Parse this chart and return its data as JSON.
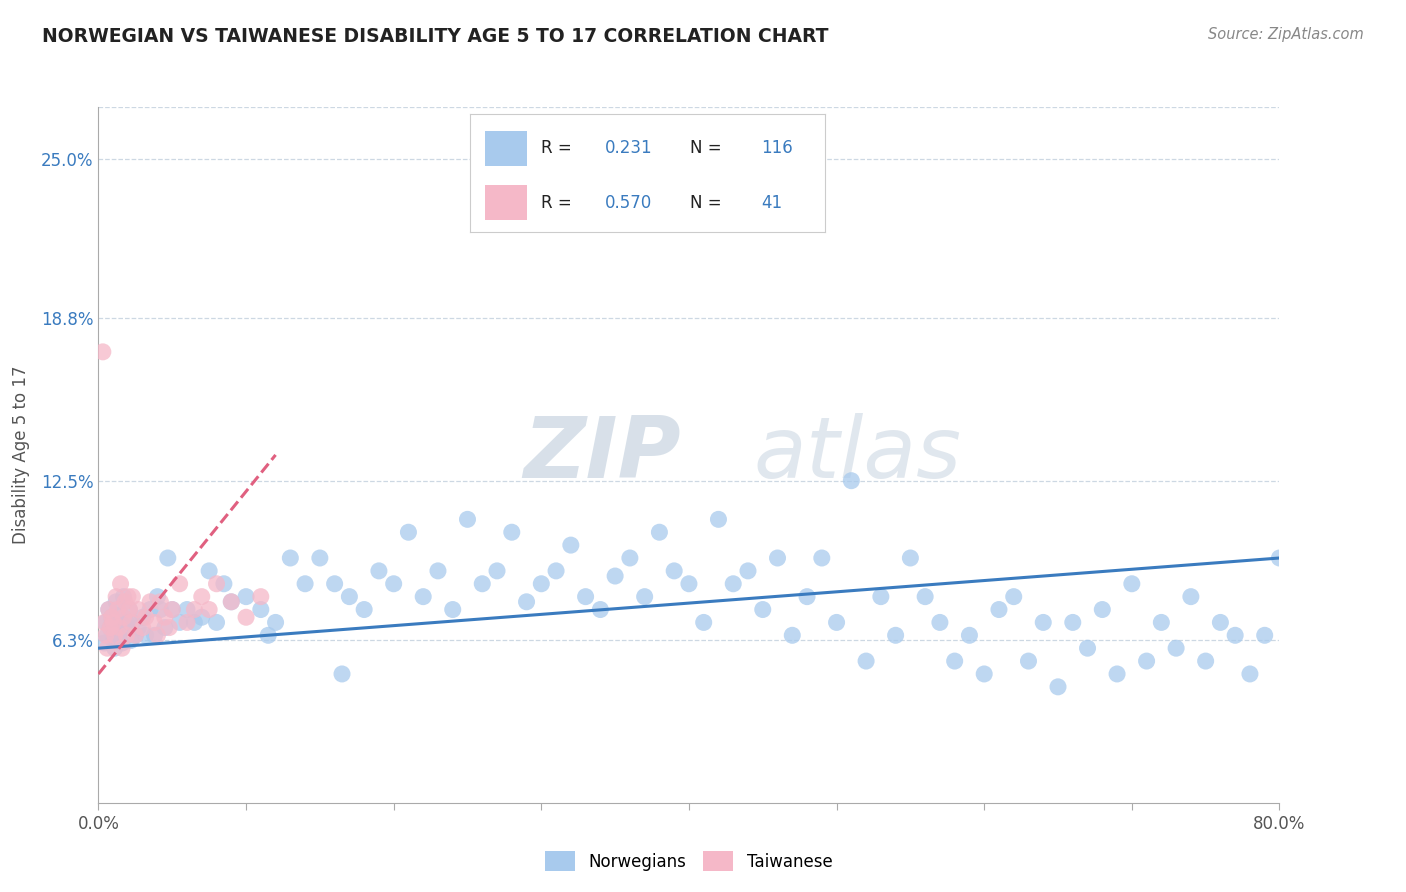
{
  "title": "NORWEGIAN VS TAIWANESE DISABILITY AGE 5 TO 17 CORRELATION CHART",
  "source": "Source: ZipAtlas.com",
  "ylabel": "Disability Age 5 to 17",
  "xlim": [
    0.0,
    80.0
  ],
  "ylim": [
    0.0,
    27.0
  ],
  "ytick_positions": [
    6.3,
    12.5,
    18.8,
    25.0
  ],
  "ytick_labels": [
    "6.3%",
    "12.5%",
    "18.8%",
    "25.0%"
  ],
  "xtick_positions": [
    0.0,
    10.0,
    20.0,
    30.0,
    40.0,
    50.0,
    60.0,
    70.0,
    80.0
  ],
  "xtick_labels": [
    "0.0%",
    "",
    "",
    "",
    "",
    "",
    "",
    "",
    "80.0%"
  ],
  "norwegian_R": 0.231,
  "norwegian_N": 116,
  "taiwanese_R": 0.57,
  "taiwanese_N": 41,
  "blue_color": "#a8caed",
  "pink_color": "#f5b8c8",
  "blue_line_color": "#3a7bbf",
  "pink_line_color": "#e06080",
  "watermark": "ZIPatlas",
  "watermark_blue": "#c5d8ed",
  "watermark_gray": "#a0a8b0",
  "background_color": "#ffffff",
  "grid_color": "#c8d4e0",
  "title_color": "#222222",
  "legend_r_color": "#222222",
  "legend_n_color": "#3a7bbf",
  "nor_x": [
    0.4,
    0.5,
    0.6,
    0.7,
    0.8,
    0.9,
    1.0,
    1.1,
    1.2,
    1.3,
    1.4,
    1.5,
    1.6,
    1.7,
    1.8,
    1.9,
    2.0,
    2.1,
    2.2,
    2.3,
    2.5,
    2.7,
    3.0,
    3.2,
    3.5,
    4.0,
    4.5,
    5.0,
    5.5,
    6.0,
    6.5,
    7.0,
    7.5,
    8.0,
    9.0,
    10.0,
    11.0,
    12.0,
    13.0,
    14.0,
    15.0,
    16.0,
    17.0,
    18.0,
    19.0,
    20.0,
    21.0,
    22.0,
    23.0,
    24.0,
    25.0,
    26.0,
    27.0,
    28.0,
    29.0,
    30.0,
    31.0,
    32.0,
    33.0,
    34.0,
    35.0,
    36.0,
    37.0,
    38.0,
    39.0,
    40.0,
    41.0,
    42.0,
    43.0,
    44.0,
    45.0,
    46.0,
    47.0,
    48.0,
    49.0,
    50.0,
    51.0,
    52.0,
    53.0,
    54.0,
    55.0,
    56.0,
    57.0,
    58.0,
    59.0,
    60.0,
    61.0,
    62.0,
    63.0,
    64.0,
    65.0,
    66.0,
    67.0,
    68.0,
    69.0,
    70.0,
    71.0,
    72.0,
    73.0,
    74.0,
    75.0,
    76.0,
    77.0,
    78.0,
    79.0,
    80.0,
    8.5,
    3.8,
    4.2,
    4.7,
    16.5,
    11.5
  ],
  "nor_y": [
    6.2,
    7.0,
    6.5,
    7.5,
    6.8,
    7.2,
    6.3,
    6.0,
    7.8,
    6.5,
    7.0,
    7.3,
    6.2,
    8.0,
    6.5,
    7.0,
    6.8,
    7.5,
    6.3,
    7.0,
    6.5,
    6.8,
    7.2,
    6.5,
    7.5,
    8.0,
    6.8,
    7.5,
    7.0,
    7.5,
    7.0,
    7.2,
    9.0,
    7.0,
    7.8,
    8.0,
    7.5,
    7.0,
    9.5,
    8.5,
    9.5,
    8.5,
    8.0,
    7.5,
    9.0,
    8.5,
    10.5,
    8.0,
    9.0,
    7.5,
    11.0,
    8.5,
    9.0,
    10.5,
    7.8,
    8.5,
    9.0,
    10.0,
    8.0,
    7.5,
    8.8,
    9.5,
    8.0,
    10.5,
    9.0,
    8.5,
    7.0,
    11.0,
    8.5,
    9.0,
    7.5,
    9.5,
    6.5,
    8.0,
    9.5,
    7.0,
    12.5,
    5.5,
    8.0,
    6.5,
    9.5,
    8.0,
    7.0,
    5.5,
    6.5,
    5.0,
    7.5,
    8.0,
    5.5,
    7.0,
    4.5,
    7.0,
    6.0,
    7.5,
    5.0,
    8.5,
    5.5,
    7.0,
    6.0,
    8.0,
    5.5,
    7.0,
    6.5,
    5.0,
    6.5,
    9.5,
    8.5,
    6.5,
    7.5,
    9.5,
    5.0,
    6.5
  ],
  "tai_x": [
    0.3,
    0.4,
    0.5,
    0.6,
    0.7,
    0.8,
    0.9,
    1.0,
    1.1,
    1.2,
    1.3,
    1.4,
    1.5,
    1.6,
    1.7,
    1.8,
    1.9,
    2.0,
    2.1,
    2.2,
    2.3,
    2.5,
    2.7,
    3.0,
    3.2,
    3.5,
    3.8,
    4.0,
    4.2,
    4.5,
    4.8,
    5.0,
    5.5,
    6.0,
    6.5,
    7.0,
    7.5,
    8.0,
    9.0,
    10.0,
    11.0
  ],
  "tai_y": [
    17.5,
    7.0,
    6.5,
    6.0,
    7.5,
    6.8,
    7.2,
    7.0,
    6.5,
    8.0,
    7.5,
    6.8,
    8.5,
    6.0,
    7.2,
    7.8,
    6.5,
    8.0,
    7.5,
    7.0,
    8.0,
    6.5,
    7.5,
    6.8,
    7.2,
    7.8,
    7.0,
    6.5,
    7.8,
    7.2,
    6.8,
    7.5,
    8.5,
    7.0,
    7.5,
    8.0,
    7.5,
    8.5,
    7.8,
    7.2,
    8.0
  ],
  "nor_line_x": [
    0.0,
    80.0
  ],
  "nor_line_y": [
    6.0,
    9.5
  ],
  "tai_line_x": [
    0.0,
    12.0
  ],
  "tai_line_y": [
    5.0,
    13.5
  ]
}
